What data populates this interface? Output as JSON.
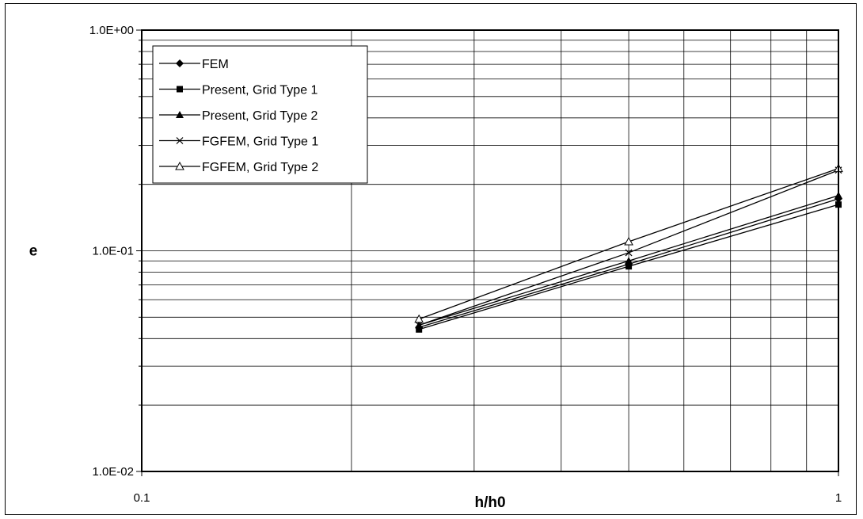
{
  "chart_data": {
    "type": "line",
    "title": "",
    "xlabel": "h/h0",
    "ylabel": "e",
    "x_scale": "log",
    "y_scale": "log",
    "xlim": [
      0.1,
      1
    ],
    "ylim": [
      0.01,
      1
    ],
    "x_tick_labels": [
      "0.1",
      "1"
    ],
    "y_tick_labels": [
      "1.0E-02",
      "1.0E-01",
      "1.0E+00"
    ],
    "grid": true,
    "legend_position": "top-left",
    "series": [
      {
        "name": "FEM",
        "marker": "diamond-filled",
        "x": [
          0.25,
          0.5,
          1.0
        ],
        "y": [
          0.045,
          0.087,
          0.172
        ]
      },
      {
        "name": "Present, Grid Type 1",
        "marker": "square-filled",
        "x": [
          0.25,
          0.5,
          1.0
        ],
        "y": [
          0.044,
          0.085,
          0.162
        ]
      },
      {
        "name": "Present, Grid Type 2",
        "marker": "triangle-filled",
        "x": [
          0.25,
          0.5,
          1.0
        ],
        "y": [
          0.046,
          0.09,
          0.178
        ]
      },
      {
        "name": "FGFEM, Grid Type 1",
        "marker": "cross",
        "x": [
          0.25,
          0.5,
          1.0
        ],
        "y": [
          0.046,
          0.098,
          0.232
        ]
      },
      {
        "name": "FGFEM, Grid Type 2",
        "marker": "triangle-open",
        "x": [
          0.25,
          0.5,
          1.0
        ],
        "y": [
          0.049,
          0.11,
          0.236
        ]
      }
    ]
  }
}
